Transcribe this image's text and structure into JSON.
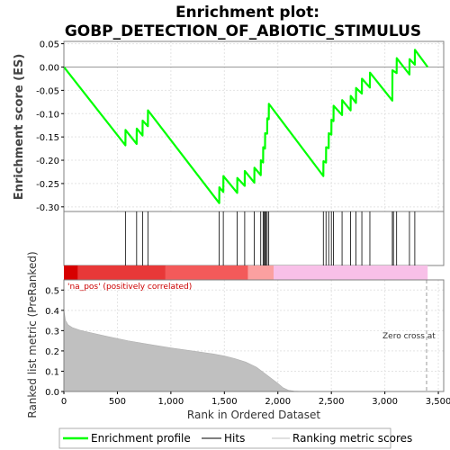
{
  "chart_data": {
    "type": "line",
    "title_line1": "Enrichment plot:",
    "title_line2": "GOBP_DETECTION_OF_ABIOTIC_STIMULUS",
    "es_panel": {
      "ylabel": "Enrichment score (ES)",
      "ylim": [
        -0.31,
        0.055
      ],
      "yticks": [
        0.05,
        0.0,
        -0.05,
        -0.1,
        -0.15,
        -0.2,
        -0.25,
        -0.3
      ],
      "ytick_labels": [
        "0.05",
        "0.00",
        "-0.05",
        "-0.10",
        "-0.15",
        "-0.20",
        "-0.25",
        "-0.30"
      ],
      "series": [
        {
          "name": "Enrichment profile",
          "color": "#00ff00",
          "x": [
            0,
            575,
            576,
            680,
            681,
            735,
            736,
            785,
            786,
            1452,
            1453,
            1490,
            1491,
            1620,
            1621,
            1690,
            1691,
            1780,
            1781,
            1840,
            1841,
            1862,
            1863,
            1880,
            1881,
            1900,
            1901,
            1915,
            1916,
            2425,
            2426,
            2450,
            2451,
            2475,
            2476,
            2500,
            2501,
            2520,
            2521,
            2600,
            2601,
            2680,
            2681,
            2730,
            2731,
            2785,
            2786,
            2860,
            2861,
            3070,
            3071,
            3110,
            3111,
            3230,
            3231,
            3280,
            3281,
            3400
          ],
          "y": [
            0.0,
            -0.168,
            -0.135,
            -0.165,
            -0.132,
            -0.147,
            -0.115,
            -0.127,
            -0.093,
            -0.292,
            -0.258,
            -0.268,
            -0.234,
            -0.27,
            -0.238,
            -0.255,
            -0.223,
            -0.248,
            -0.216,
            -0.232,
            -0.2,
            -0.205,
            -0.172,
            -0.175,
            -0.142,
            -0.143,
            -0.11,
            -0.112,
            -0.079,
            -0.234,
            -0.202,
            -0.205,
            -0.172,
            -0.174,
            -0.142,
            -0.145,
            -0.113,
            -0.116,
            -0.083,
            -0.103,
            -0.071,
            -0.093,
            -0.062,
            -0.077,
            -0.045,
            -0.057,
            -0.025,
            -0.044,
            -0.012,
            -0.072,
            -0.007,
            -0.013,
            0.019,
            -0.016,
            0.017,
            0.005,
            0.037,
            0.0
          ]
        }
      ]
    },
    "hits": [
      575,
      680,
      735,
      785,
      1452,
      1490,
      1620,
      1690,
      1780,
      1840,
      1862,
      1870,
      1880,
      1890,
      1900,
      1915,
      2425,
      2450,
      2475,
      2500,
      2520,
      2600,
      2680,
      2730,
      2785,
      2860,
      3070,
      3080,
      3110,
      3230,
      3280
    ],
    "heat_segments": [
      {
        "from": 0,
        "to": 130,
        "color": "#d70000"
      },
      {
        "from": 130,
        "to": 950,
        "color": "#e83838"
      },
      {
        "from": 950,
        "to": 1720,
        "color": "#f35a5a"
      },
      {
        "from": 1720,
        "to": 1960,
        "color": "#fba0a0"
      },
      {
        "from": 1960,
        "to": 3400,
        "color": "#f8c0e8"
      }
    ],
    "metric_panel": {
      "ylabel": "Ranked list metric (PreRanked)",
      "ylim": [
        0,
        0.55
      ],
      "yticks": [
        0.0,
        0.1,
        0.2,
        0.3,
        0.4,
        0.5
      ],
      "ytick_labels": [
        "0.0",
        "0.1",
        "0.2",
        "0.3",
        "0.4",
        "0.5"
      ],
      "x": [
        0,
        5,
        15,
        40,
        80,
        150,
        250,
        400,
        600,
        800,
        1000,
        1200,
        1400,
        1500,
        1600,
        1700,
        1800,
        1850,
        1900,
        1950,
        2000,
        2050,
        2100,
        2150,
        2200,
        2300,
        3400
      ],
      "y": [
        0.41,
        0.385,
        0.35,
        0.328,
        0.315,
        0.302,
        0.29,
        0.272,
        0.25,
        0.232,
        0.215,
        0.2,
        0.185,
        0.175,
        0.162,
        0.145,
        0.12,
        0.1,
        0.08,
        0.06,
        0.04,
        0.018,
        0.006,
        0.002,
        0.001,
        0.0,
        0.0
      ],
      "pos_label": "'na_pos' (positively correlated)",
      "zero_cross_label": "Zero cross at",
      "zero_cross_x": 3390
    },
    "xlabel": "Rank in Ordered Dataset",
    "xlim": [
      0,
      3550
    ],
    "xticks": [
      0,
      500,
      1000,
      1500,
      2000,
      2500,
      3000,
      3500
    ],
    "xtick_labels": [
      "0",
      "500",
      "1,000",
      "1,500",
      "2,000",
      "2,500",
      "3,000",
      "3,500"
    ],
    "legend": {
      "items": [
        {
          "label": "Enrichment profile",
          "color": "#00ff00"
        },
        {
          "label": "Hits",
          "color": "#000000"
        },
        {
          "label": "Ranking metric scores",
          "color": "#c0c0c0"
        }
      ]
    }
  }
}
